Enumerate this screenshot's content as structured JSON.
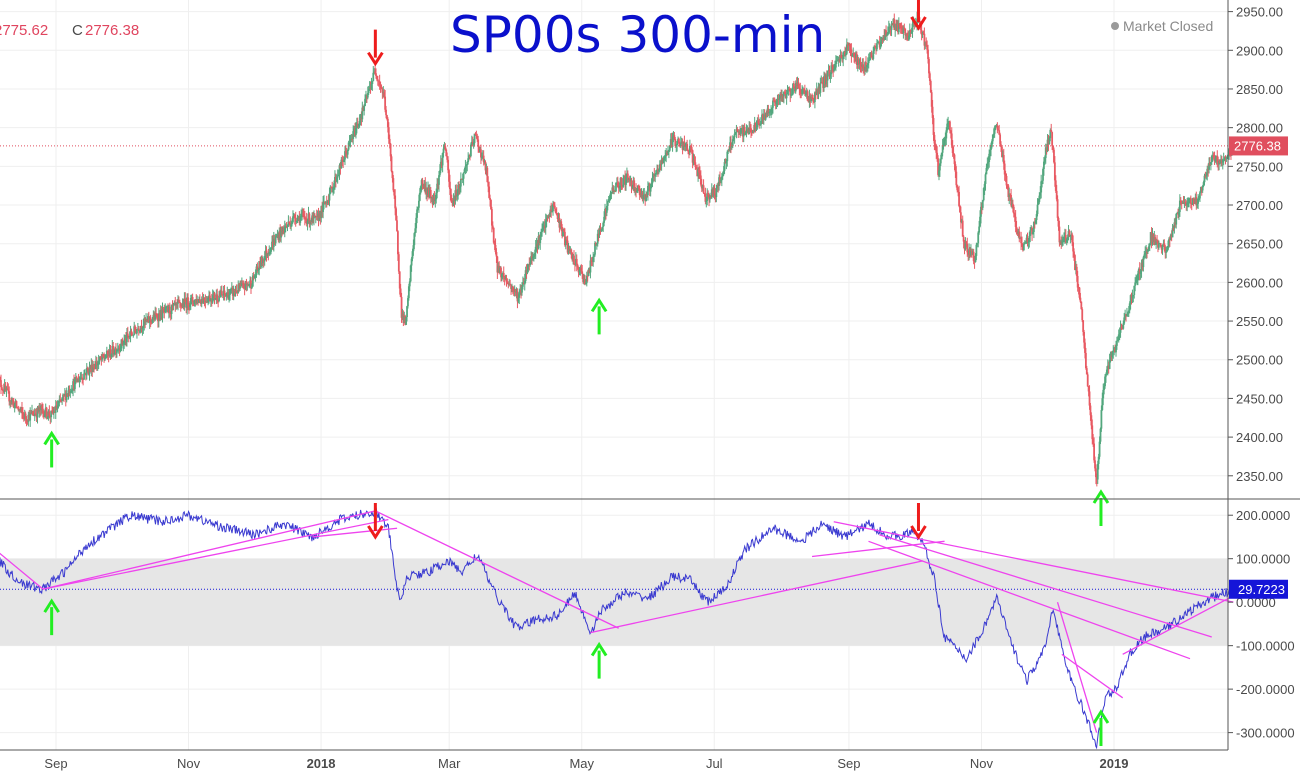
{
  "header": {
    "title": "SP00s 300-min",
    "open_value": "2775.62",
    "close_prefix": "C",
    "close_value": "2776.38",
    "status": "Market Closed"
  },
  "colors": {
    "up_candle": "#53a77e",
    "down_candle": "#e85a63",
    "oscillator_line": "#3a3ad0",
    "trendline": "#ee44ee",
    "neutral_band": "#e6e6e6",
    "price_marker": "#e04e5e",
    "oscillator_marker": "#1515d8",
    "buy_arrow": "#22ee22",
    "sell_arrow": "#ee1c1c"
  },
  "chart_data": [
    {
      "type": "candlestick",
      "title": "SP00s 300-min",
      "ylim": [
        2320,
        2965
      ],
      "y_ticks": [
        "2950.00",
        "2900.00",
        "2850.00",
        "2800.00",
        "2750.00",
        "2700.00",
        "2650.00",
        "2600.00",
        "2550.00",
        "2500.00",
        "2450.00",
        "2400.00",
        "2350.00"
      ],
      "last_value": 2776.38,
      "last_value_label": "2776.38",
      "x_ticks": [
        {
          "label": "Sep",
          "date": "2017-09-01",
          "bold": false
        },
        {
          "label": "Nov",
          "date": "2017-11-01",
          "bold": false
        },
        {
          "label": "2018",
          "date": "2018-01-01",
          "bold": true
        },
        {
          "label": "Mar",
          "date": "2018-03-01",
          "bold": false
        },
        {
          "label": "May",
          "date": "2018-05-01",
          "bold": false
        },
        {
          "label": "Jul",
          "date": "2018-07-01",
          "bold": false
        },
        {
          "label": "Sep",
          "date": "2018-09-01",
          "bold": false
        },
        {
          "label": "Nov",
          "date": "2018-11-01",
          "bold": false
        },
        {
          "label": "2019",
          "date": "2019-01-01",
          "bold": true
        }
      ],
      "price_path": [
        [
          "2017-08-05",
          2475
        ],
        [
          "2017-08-12",
          2445
        ],
        [
          "2017-08-18",
          2425
        ],
        [
          "2017-08-25",
          2435
        ],
        [
          "2017-08-30",
          2428
        ],
        [
          "2017-09-08",
          2465
        ],
        [
          "2017-09-15",
          2485
        ],
        [
          "2017-09-22",
          2500
        ],
        [
          "2017-10-01",
          2520
        ],
        [
          "2017-10-10",
          2545
        ],
        [
          "2017-10-20",
          2560
        ],
        [
          "2017-11-01",
          2575
        ],
        [
          "2017-11-10",
          2580
        ],
        [
          "2017-11-20",
          2585
        ],
        [
          "2017-11-30",
          2600
        ],
        [
          "2017-12-05",
          2630
        ],
        [
          "2017-12-12",
          2660
        ],
        [
          "2017-12-20",
          2685
        ],
        [
          "2017-12-30",
          2680
        ],
        [
          "2018-01-05",
          2715
        ],
        [
          "2018-01-10",
          2750
        ],
        [
          "2018-01-15",
          2785
        ],
        [
          "2018-01-20",
          2820
        ],
        [
          "2018-01-26",
          2875
        ],
        [
          "2018-01-30",
          2840
        ],
        [
          "2018-02-02",
          2765
        ],
        [
          "2018-02-05",
          2660
        ],
        [
          "2018-02-07",
          2560
        ],
        [
          "2018-02-09",
          2545
        ],
        [
          "2018-02-12",
          2640
        ],
        [
          "2018-02-16",
          2730
        ],
        [
          "2018-02-22",
          2705
        ],
        [
          "2018-02-27",
          2780
        ],
        [
          "2018-03-02",
          2700
        ],
        [
          "2018-03-07",
          2735
        ],
        [
          "2018-03-13",
          2790
        ],
        [
          "2018-03-18",
          2745
        ],
        [
          "2018-03-23",
          2620
        ],
        [
          "2018-03-28",
          2600
        ],
        [
          "2018-04-02",
          2580
        ],
        [
          "2018-04-06",
          2620
        ],
        [
          "2018-04-12",
          2660
        ],
        [
          "2018-04-18",
          2700
        ],
        [
          "2018-04-25",
          2640
        ],
        [
          "2018-05-03",
          2600
        ],
        [
          "2018-05-09",
          2665
        ],
        [
          "2018-05-15",
          2720
        ],
        [
          "2018-05-22",
          2735
        ],
        [
          "2018-05-30",
          2710
        ],
        [
          "2018-06-06",
          2750
        ],
        [
          "2018-06-12",
          2785
        ],
        [
          "2018-06-20",
          2770
        ],
        [
          "2018-06-27",
          2710
        ],
        [
          "2018-07-02",
          2718
        ],
        [
          "2018-07-10",
          2790
        ],
        [
          "2018-07-20",
          2800
        ],
        [
          "2018-07-28",
          2830
        ],
        [
          "2018-08-08",
          2855
        ],
        [
          "2018-08-15",
          2835
        ],
        [
          "2018-08-25",
          2880
        ],
        [
          "2018-09-01",
          2905
        ],
        [
          "2018-09-07",
          2875
        ],
        [
          "2018-09-14",
          2905
        ],
        [
          "2018-09-21",
          2935
        ],
        [
          "2018-09-28",
          2918
        ],
        [
          "2018-10-03",
          2940
        ],
        [
          "2018-10-07",
          2900
        ],
        [
          "2018-10-10",
          2790
        ],
        [
          "2018-10-12",
          2745
        ],
        [
          "2018-10-17",
          2810
        ],
        [
          "2018-10-24",
          2650
        ],
        [
          "2018-10-29",
          2630
        ],
        [
          "2018-11-03",
          2740
        ],
        [
          "2018-11-08",
          2810
        ],
        [
          "2018-11-13",
          2720
        ],
        [
          "2018-11-20",
          2640
        ],
        [
          "2018-11-26",
          2680
        ],
        [
          "2018-11-30",
          2760
        ],
        [
          "2018-12-03",
          2800
        ],
        [
          "2018-12-07",
          2650
        ],
        [
          "2018-12-12",
          2665
        ],
        [
          "2018-12-17",
          2560
        ],
        [
          "2018-12-21",
          2430
        ],
        [
          "2018-12-24",
          2340
        ],
        [
          "2018-12-27",
          2465
        ],
        [
          "2018-12-31",
          2505
        ],
        [
          "2019-01-04",
          2535
        ],
        [
          "2019-01-10",
          2590
        ],
        [
          "2019-01-18",
          2660
        ],
        [
          "2019-01-25",
          2640
        ],
        [
          "2019-02-01",
          2705
        ],
        [
          "2019-02-08",
          2705
        ],
        [
          "2019-02-15",
          2760
        ],
        [
          "2019-02-20",
          2755
        ],
        [
          "2019-02-25",
          2776
        ]
      ],
      "annotations": [
        {
          "type": "sell-arrow",
          "date": "2018-01-26",
          "value": 2875
        },
        {
          "type": "sell-arrow",
          "date": "2018-10-03",
          "value": 2940
        },
        {
          "type": "buy-arrow",
          "date": "2017-08-30",
          "value": 2428
        },
        {
          "type": "buy-arrow",
          "date": "2018-05-09",
          "value": 2600
        },
        {
          "type": "buy-arrow",
          "date": "2018-12-26",
          "value": 2340
        }
      ]
    },
    {
      "type": "line",
      "ylim": [
        -340,
        235
      ],
      "y_ticks": [
        "200.0000",
        "100.0000",
        "0.0000",
        "-100.0000",
        "-200.0000",
        "-300.0000"
      ],
      "band": [
        -100,
        100
      ],
      "last_value": 29.7223,
      "last_value_label": "29.7223",
      "path": [
        [
          "2017-07-28",
          150
        ],
        [
          "2017-08-05",
          100
        ],
        [
          "2017-08-12",
          60
        ],
        [
          "2017-08-18",
          40
        ],
        [
          "2017-08-26",
          30
        ],
        [
          "2017-09-05",
          70
        ],
        [
          "2017-09-15",
          130
        ],
        [
          "2017-09-25",
          165
        ],
        [
          "2017-10-05",
          200
        ],
        [
          "2017-10-20",
          185
        ],
        [
          "2017-11-01",
          200
        ],
        [
          "2017-11-15",
          175
        ],
        [
          "2017-12-01",
          155
        ],
        [
          "2017-12-15",
          180
        ],
        [
          "2017-12-28",
          150
        ],
        [
          "2018-01-10",
          190
        ],
        [
          "2018-01-26",
          210
        ],
        [
          "2018-02-01",
          170
        ],
        [
          "2018-02-06",
          0
        ],
        [
          "2018-02-10",
          60
        ],
        [
          "2018-02-20",
          70
        ],
        [
          "2018-02-28",
          95
        ],
        [
          "2018-03-07",
          70
        ],
        [
          "2018-03-14",
          110
        ],
        [
          "2018-03-22",
          20
        ],
        [
          "2018-04-01",
          -60
        ],
        [
          "2018-04-10",
          -40
        ],
        [
          "2018-04-20",
          -30
        ],
        [
          "2018-04-28",
          20
        ],
        [
          "2018-05-05",
          -70
        ],
        [
          "2018-05-10",
          -20
        ],
        [
          "2018-05-20",
          20
        ],
        [
          "2018-06-01",
          10
        ],
        [
          "2018-06-12",
          60
        ],
        [
          "2018-06-20",
          50
        ],
        [
          "2018-06-28",
          0
        ],
        [
          "2018-07-06",
          30
        ],
        [
          "2018-07-15",
          120
        ],
        [
          "2018-07-28",
          170
        ],
        [
          "2018-08-10",
          140
        ],
        [
          "2018-08-20",
          180
        ],
        [
          "2018-08-30",
          150
        ],
        [
          "2018-09-10",
          180
        ],
        [
          "2018-09-20",
          150
        ],
        [
          "2018-10-01",
          160
        ],
        [
          "2018-10-05",
          140
        ],
        [
          "2018-10-10",
          60
        ],
        [
          "2018-10-15",
          -80
        ],
        [
          "2018-10-25",
          -130
        ],
        [
          "2018-11-01",
          -70
        ],
        [
          "2018-11-08",
          10
        ],
        [
          "2018-11-15",
          -100
        ],
        [
          "2018-11-22",
          -180
        ],
        [
          "2018-11-30",
          -110
        ],
        [
          "2018-12-04",
          -10
        ],
        [
          "2018-12-10",
          -150
        ],
        [
          "2018-12-18",
          -250
        ],
        [
          "2018-12-24",
          -330
        ],
        [
          "2018-12-28",
          -220
        ],
        [
          "2019-01-03",
          -190
        ],
        [
          "2019-01-08",
          -120
        ],
        [
          "2019-01-15",
          -80
        ],
        [
          "2019-01-25",
          -60
        ],
        [
          "2019-02-05",
          -20
        ],
        [
          "2019-02-15",
          10
        ],
        [
          "2019-02-25",
          30
        ]
      ],
      "trendlines": [
        [
          [
            "2017-07-28",
            150
          ],
          [
            "2017-08-26",
            30
          ]
        ],
        [
          [
            "2017-08-26",
            30
          ],
          [
            "2018-01-26",
            210
          ]
        ],
        [
          [
            "2017-08-26",
            30
          ],
          [
            "2018-02-01",
            190
          ]
        ],
        [
          [
            "2017-12-28",
            150
          ],
          [
            "2018-02-05",
            170
          ]
        ],
        [
          [
            "2018-01-26",
            210
          ],
          [
            "2018-05-18",
            -60
          ]
        ],
        [
          [
            "2018-05-05",
            -70
          ],
          [
            "2018-10-05",
            95
          ]
        ],
        [
          [
            "2018-08-25",
            185
          ],
          [
            "2019-02-25",
            0
          ]
        ],
        [
          [
            "2018-09-15",
            155
          ],
          [
            "2019-02-15",
            -80
          ]
        ],
        [
          [
            "2018-09-10",
            140
          ],
          [
            "2019-02-05",
            -130
          ]
        ],
        [
          [
            "2018-08-15",
            105
          ],
          [
            "2018-10-15",
            140
          ]
        ],
        [
          [
            "2018-12-06",
            0
          ],
          [
            "2018-12-24",
            -300
          ]
        ],
        [
          [
            "2018-12-08",
            -120
          ],
          [
            "2019-01-05",
            -220
          ]
        ],
        [
          [
            "2019-01-05",
            -120
          ],
          [
            "2019-02-27",
            20
          ]
        ]
      ],
      "annotations": [
        {
          "type": "sell-arrow",
          "date": "2018-01-26",
          "value": 212
        },
        {
          "type": "sell-arrow",
          "date": "2018-10-03",
          "value": 160
        },
        {
          "type": "buy-arrow",
          "date": "2017-08-30",
          "value": 30
        },
        {
          "type": "buy-arrow",
          "date": "2018-05-09",
          "value": -70
        },
        {
          "type": "buy-arrow",
          "date": "2018-12-26",
          "value": -330
        }
      ]
    }
  ]
}
